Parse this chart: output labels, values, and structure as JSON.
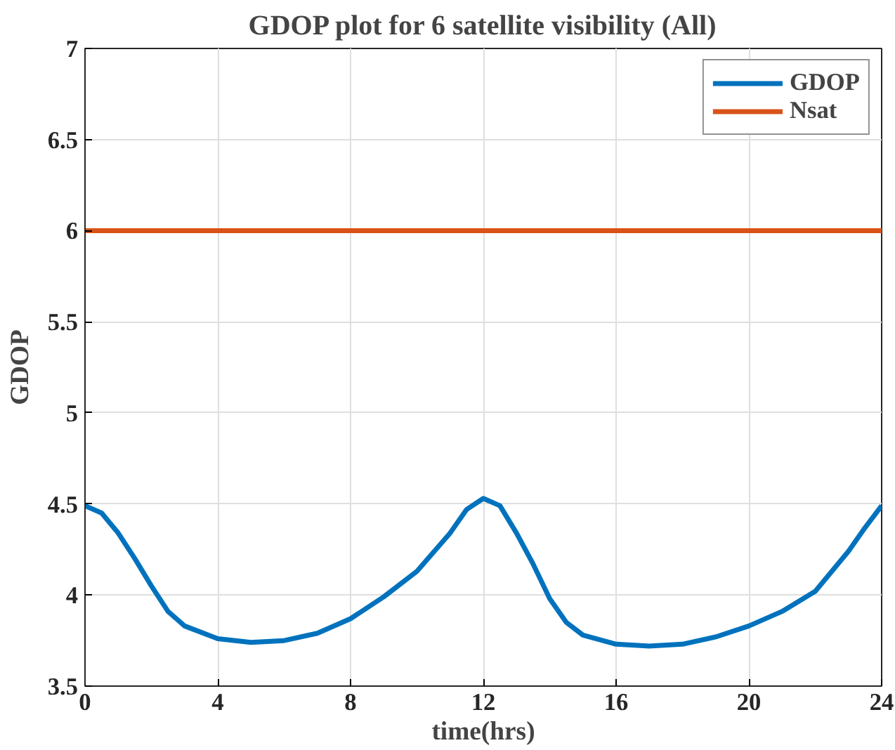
{
  "chart_data": {
    "type": "line",
    "title": "GDOP plot for 6 satellite visibility (All)",
    "xlabel": "time(hrs)",
    "ylabel": "GDOP",
    "series": [
      {
        "name": "GDOP",
        "color": "#0072bd",
        "x": [
          0,
          0.5,
          1,
          1.5,
          2,
          2.5,
          3,
          4,
          5,
          6,
          7,
          8,
          9,
          10,
          11,
          11.5,
          12,
          12.5,
          13,
          13.5,
          14,
          14.5,
          15,
          16,
          17,
          18,
          19,
          20,
          21,
          22,
          23,
          23.5,
          24
        ],
        "values": [
          4.49,
          4.45,
          4.34,
          4.2,
          4.05,
          3.91,
          3.83,
          3.76,
          3.74,
          3.75,
          3.79,
          3.87,
          3.99,
          4.13,
          4.34,
          4.47,
          4.53,
          4.49,
          4.34,
          4.17,
          3.98,
          3.85,
          3.78,
          3.73,
          3.72,
          3.73,
          3.77,
          3.83,
          3.91,
          4.02,
          4.24,
          4.37,
          4.49
        ]
      },
      {
        "name": "Nsat",
        "color": "#d95319",
        "x": [
          0,
          24
        ],
        "values": [
          6,
          6
        ]
      }
    ],
    "xlim": [
      0,
      24
    ],
    "xticks": [
      0,
      4,
      8,
      12,
      16,
      20,
      24
    ],
    "ylim": [
      3.5,
      7
    ],
    "yticks": [
      3.5,
      4,
      4.5,
      5,
      5.5,
      6,
      6.5,
      7
    ],
    "grid": true,
    "legend": "top right",
    "line_style": "solid",
    "marker": "none"
  }
}
